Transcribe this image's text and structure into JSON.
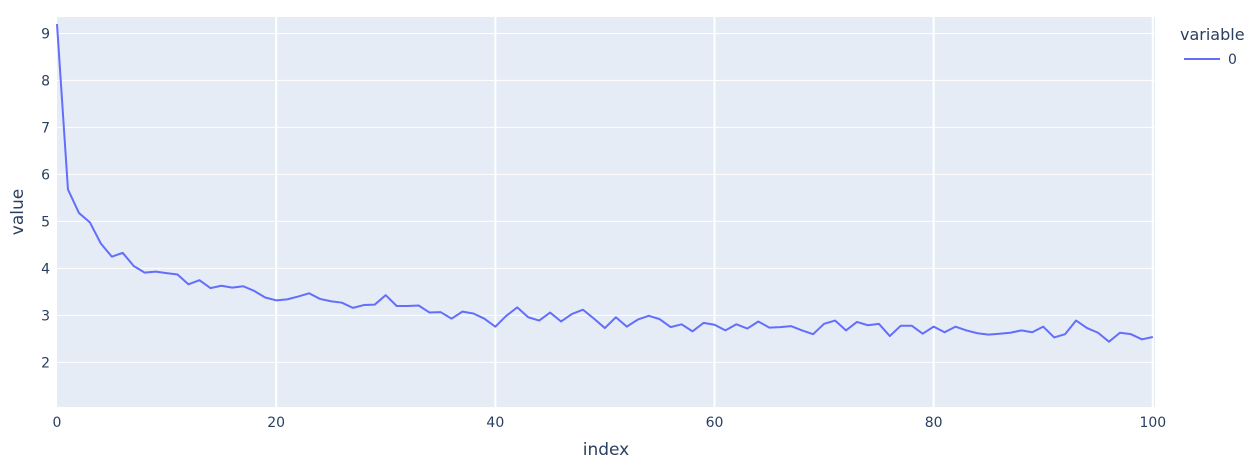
{
  "chart_data": {
    "type": "line",
    "xlabel": "index",
    "ylabel": "value",
    "xlim": [
      0,
      100.2
    ],
    "ylim": [
      1.05,
      9.35
    ],
    "xticks": [
      0,
      20,
      40,
      60,
      80,
      100
    ],
    "yticks": [
      2,
      3,
      4,
      5,
      6,
      7,
      8,
      9
    ],
    "grid": true,
    "legend": {
      "title": "variable",
      "position": "top-right"
    },
    "series": [
      {
        "name": "0",
        "color": "#636efa",
        "x": [
          0,
          1,
          2,
          3,
          4,
          5,
          6,
          7,
          8,
          9,
          10,
          11,
          12,
          13,
          14,
          15,
          16,
          17,
          18,
          19,
          20,
          21,
          22,
          23,
          24,
          25,
          26,
          27,
          28,
          29,
          30,
          31,
          32,
          33,
          34,
          35,
          36,
          37,
          38,
          39,
          40,
          41,
          42,
          43,
          44,
          45,
          46,
          47,
          48,
          49,
          50,
          51,
          52,
          53,
          54,
          55,
          56,
          57,
          58,
          59,
          60,
          61,
          62,
          63,
          64,
          65,
          66,
          67,
          68,
          69,
          70,
          71,
          72,
          73,
          74,
          75,
          76,
          77,
          78,
          79,
          80,
          81,
          82,
          83,
          84,
          85,
          86,
          87,
          88,
          89,
          90,
          91,
          92,
          93,
          94,
          95,
          96,
          97,
          98,
          99,
          100
        ],
        "values": [
          9.2,
          5.68,
          5.18,
          4.98,
          4.53,
          4.25,
          4.33,
          4.05,
          3.91,
          3.93,
          3.9,
          3.87,
          3.66,
          3.75,
          3.58,
          3.63,
          3.59,
          3.62,
          3.52,
          3.38,
          3.32,
          3.34,
          3.4,
          3.47,
          3.35,
          3.3,
          3.27,
          3.16,
          3.22,
          3.23,
          3.43,
          3.2,
          3.2,
          3.21,
          3.06,
          3.07,
          2.93,
          3.08,
          3.04,
          2.93,
          2.76,
          2.99,
          3.17,
          2.96,
          2.89,
          3.06,
          2.87,
          3.03,
          3.12,
          2.93,
          2.73,
          2.96,
          2.76,
          2.91,
          2.99,
          2.92,
          2.75,
          2.81,
          2.66,
          2.84,
          2.8,
          2.68,
          2.81,
          2.72,
          2.87,
          2.74,
          2.75,
          2.77,
          2.68,
          2.6,
          2.82,
          2.89,
          2.68,
          2.86,
          2.79,
          2.82,
          2.56,
          2.78,
          2.78,
          2.61,
          2.76,
          2.64,
          2.76,
          2.68,
          2.62,
          2.59,
          2.61,
          2.63,
          2.68,
          2.64,
          2.76,
          2.53,
          2.6,
          2.89,
          2.73,
          2.63,
          2.44,
          2.63,
          2.6,
          2.49,
          2.54
        ]
      }
    ]
  }
}
